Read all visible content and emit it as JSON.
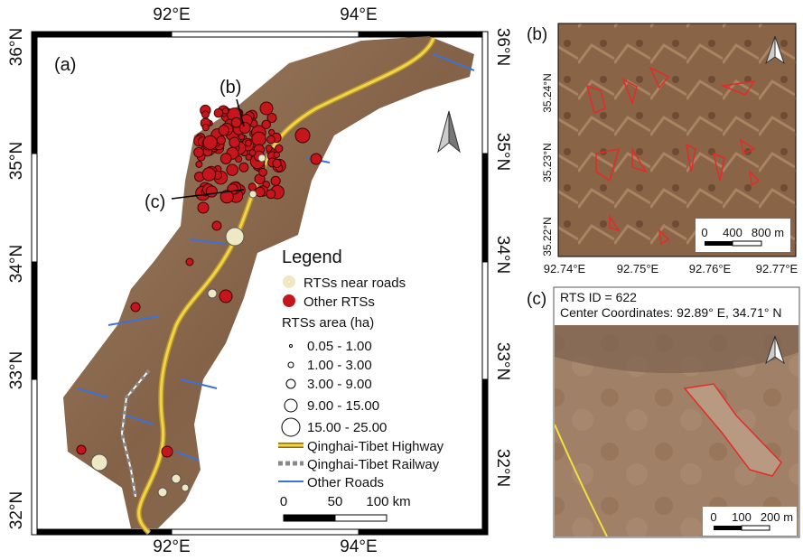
{
  "panel_a": {
    "label": "(a)",
    "top_ticks": [
      "92°E",
      "94°E"
    ],
    "bottom_ticks": [
      "92°E",
      "94°E"
    ],
    "left_ticks": [
      "36°N",
      "35°N",
      "34°N",
      "33°N",
      "32°N"
    ],
    "right_ticks": [
      "36°N",
      "35°N",
      "34°N",
      "33°N",
      "32°N"
    ],
    "callouts": [
      "(b)",
      "(c)"
    ],
    "legend": {
      "title": "Legend",
      "near_roads": "RTSs near roads",
      "other_rts": "Other RTSs",
      "area_title": "RTSs area (ha)",
      "area_classes": [
        "0.05 - 1.00",
        "1.00 - 3.00",
        "3.00 - 9.00",
        "9.00 - 15.00",
        "15.00 - 25.00"
      ],
      "highway": "Qinghai-Tibet Highway",
      "railway": "Qinghai-Tibet Railway",
      "roads": "Other Roads"
    },
    "scale": [
      "0",
      "50",
      "100 km"
    ]
  },
  "panel_b": {
    "label": "(b)",
    "y_ticks": [
      "35.24°N",
      "35.23°N",
      "35.22°N"
    ],
    "x_ticks": [
      "92.74°E",
      "92.75°E",
      "92.76°E",
      "92.77°E"
    ],
    "scale": [
      "0",
      "400",
      "800 m"
    ]
  },
  "panel_c": {
    "label": "(c)",
    "id_line": "RTS ID = 622",
    "coord_line": "Center Coordinates: 92.89° E, 34.71° N",
    "scale": [
      "0",
      "100",
      "200 m"
    ]
  }
}
